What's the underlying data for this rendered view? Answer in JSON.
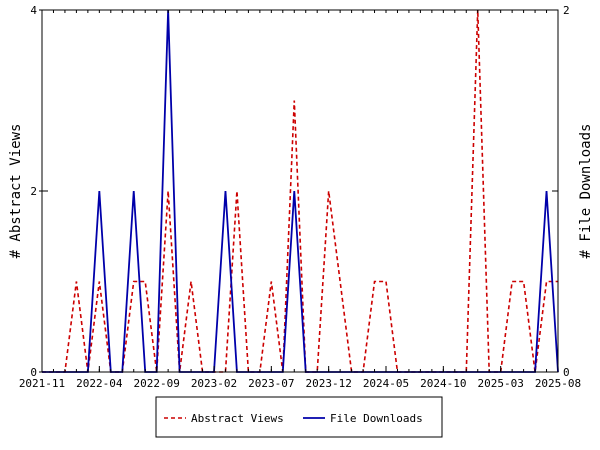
{
  "chart_data": {
    "type": "line",
    "title": "",
    "xlabel": "",
    "ylabel_left": "# Abstract Views",
    "ylabel_right": "# File Downloads",
    "x_tick_labels": [
      "2021-11",
      "2022-04",
      "2022-09",
      "2023-02",
      "2023-07",
      "2023-12",
      "2024-05",
      "2024-10",
      "2025-03",
      "2025-08"
    ],
    "x_tick_months": [
      "2021-11",
      "2022-04",
      "2022-09",
      "2023-02",
      "2023-07",
      "2023-12",
      "2024-05",
      "2024-10",
      "2025-03",
      "2025-08"
    ],
    "x_range": [
      "2021-11",
      "2025-08"
    ],
    "y_left": {
      "range": [
        0,
        4
      ],
      "ticks": [
        0,
        2,
        4
      ]
    },
    "y_right": {
      "range": [
        0,
        2
      ],
      "ticks": [
        0,
        1,
        2
      ]
    },
    "grid": false,
    "legend_position": "bottom",
    "series": [
      {
        "name": "Abstract Views",
        "axis": "left",
        "color": "#cc0000",
        "dash": "dashed",
        "points": [
          [
            "2021-11",
            0
          ],
          [
            "2021-12",
            0
          ],
          [
            "2022-01",
            0
          ],
          [
            "2022-02",
            1
          ],
          [
            "2022-03",
            0
          ],
          [
            "2022-04",
            1
          ],
          [
            "2022-05",
            0
          ],
          [
            "2022-06",
            0
          ],
          [
            "2022-07",
            1
          ],
          [
            "2022-08",
            1
          ],
          [
            "2022-09",
            0
          ],
          [
            "2022-10",
            2
          ],
          [
            "2022-11",
            0
          ],
          [
            "2022-12",
            1
          ],
          [
            "2023-01",
            0
          ],
          [
            "2023-02",
            0
          ],
          [
            "2023-03",
            0
          ],
          [
            "2023-04",
            2
          ],
          [
            "2023-05",
            0
          ],
          [
            "2023-06",
            0
          ],
          [
            "2023-07",
            1
          ],
          [
            "2023-08",
            0
          ],
          [
            "2023-09",
            3
          ],
          [
            "2023-10",
            0
          ],
          [
            "2023-11",
            0
          ],
          [
            "2023-12",
            2
          ],
          [
            "2024-01",
            1
          ],
          [
            "2024-02",
            0
          ],
          [
            "2024-03",
            0
          ],
          [
            "2024-04",
            1
          ],
          [
            "2024-05",
            1
          ],
          [
            "2024-06",
            0
          ],
          [
            "2024-07",
            0
          ],
          [
            "2024-08",
            0
          ],
          [
            "2024-09",
            0
          ],
          [
            "2024-10",
            0
          ],
          [
            "2024-11",
            0
          ],
          [
            "2024-12",
            0
          ],
          [
            "2025-01",
            4
          ],
          [
            "2025-02",
            0
          ],
          [
            "2025-03",
            0
          ],
          [
            "2025-04",
            1
          ],
          [
            "2025-05",
            1
          ],
          [
            "2025-06",
            0
          ],
          [
            "2025-07",
            1
          ],
          [
            "2025-08",
            1
          ]
        ]
      },
      {
        "name": "File Downloads",
        "axis": "right",
        "color": "#0000aa",
        "dash": "solid",
        "points": [
          [
            "2021-11",
            0
          ],
          [
            "2021-12",
            0
          ],
          [
            "2022-01",
            0
          ],
          [
            "2022-02",
            0
          ],
          [
            "2022-03",
            0
          ],
          [
            "2022-04",
            1
          ],
          [
            "2022-05",
            0
          ],
          [
            "2022-06",
            0
          ],
          [
            "2022-07",
            1
          ],
          [
            "2022-08",
            0
          ],
          [
            "2022-09",
            0
          ],
          [
            "2022-10",
            2
          ],
          [
            "2022-11",
            0
          ],
          [
            "2022-12",
            0
          ],
          [
            "2023-01",
            0
          ],
          [
            "2023-02",
            0
          ],
          [
            "2023-03",
            1
          ],
          [
            "2023-04",
            0
          ],
          [
            "2023-05",
            0
          ],
          [
            "2023-06",
            0
          ],
          [
            "2023-07",
            0
          ],
          [
            "2023-08",
            0
          ],
          [
            "2023-09",
            1
          ],
          [
            "2023-10",
            0
          ],
          [
            "2023-11",
            0
          ],
          [
            "2023-12",
            0
          ],
          [
            "2024-01",
            0
          ],
          [
            "2024-02",
            0
          ],
          [
            "2024-03",
            0
          ],
          [
            "2024-04",
            0
          ],
          [
            "2024-05",
            0
          ],
          [
            "2024-06",
            0
          ],
          [
            "2024-07",
            0
          ],
          [
            "2024-08",
            0
          ],
          [
            "2024-09",
            0
          ],
          [
            "2024-10",
            0
          ],
          [
            "2024-11",
            0
          ],
          [
            "2024-12",
            0
          ],
          [
            "2025-01",
            0
          ],
          [
            "2025-02",
            0
          ],
          [
            "2025-03",
            0
          ],
          [
            "2025-04",
            0
          ],
          [
            "2025-05",
            0
          ],
          [
            "2025-06",
            0
          ],
          [
            "2025-07",
            1
          ],
          [
            "2025-08",
            0
          ]
        ]
      }
    ]
  }
}
